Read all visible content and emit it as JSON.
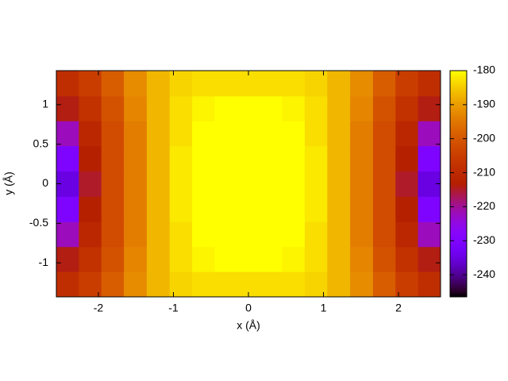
{
  "chart_data": {
    "type": "heatmap",
    "x_label": "x (Å)",
    "y_label": "y (Å)",
    "xlim": [
      -2.56,
      2.56
    ],
    "ylim": [
      -1.43,
      1.43
    ],
    "xticks": [
      -2,
      -1,
      0,
      1,
      2
    ],
    "yticks": [
      -1,
      -0.5,
      0,
      0.5,
      1
    ],
    "x": [
      -2.41,
      -2.11,
      -1.81,
      -1.51,
      -1.2,
      -0.9,
      -0.6,
      -0.3,
      0,
      0.3,
      0.6,
      0.9,
      1.2,
      1.51,
      1.81,
      2.11,
      2.41
    ],
    "y": [
      -1.27,
      -0.95,
      -0.64,
      -0.32,
      0,
      0.32,
      0.64,
      0.95,
      1.27
    ],
    "values": [
      [
        -209,
        -205,
        -199,
        -192,
        -187,
        -184,
        -183,
        -183,
        -183,
        -183,
        -183,
        -184,
        -187,
        -192,
        -199,
        -205,
        -209
      ],
      [
        -214,
        -208,
        -201,
        -193,
        -187,
        -183,
        -181,
        -180,
        -180,
        -180,
        -181,
        -183,
        -187,
        -193,
        -201,
        -208,
        -214
      ],
      [
        -222,
        -211,
        -202,
        -194,
        -187,
        -183,
        -180,
        -178,
        -178,
        -178,
        -180,
        -183,
        -187,
        -194,
        -202,
        -211,
        -222
      ],
      [
        -230,
        -213,
        -202,
        -194,
        -187,
        -182,
        -179,
        -177,
        -177,
        -177,
        -179,
        -182,
        -187,
        -194,
        -202,
        -213,
        -230
      ],
      [
        -235,
        -215,
        -202,
        -194,
        -187,
        -182,
        -179,
        -177,
        -176,
        -177,
        -179,
        -182,
        -187,
        -194,
        -202,
        -215,
        -235
      ],
      [
        -230,
        -213,
        -202,
        -194,
        -187,
        -182,
        -179,
        -177,
        -177,
        -177,
        -179,
        -182,
        -187,
        -194,
        -202,
        -213,
        -230
      ],
      [
        -222,
        -211,
        -202,
        -194,
        -187,
        -183,
        -180,
        -178,
        -178,
        -178,
        -180,
        -183,
        -187,
        -194,
        -202,
        -211,
        -222
      ],
      [
        -214,
        -208,
        -201,
        -193,
        -187,
        -183,
        -181,
        -180,
        -180,
        -180,
        -181,
        -183,
        -187,
        -193,
        -201,
        -208,
        -214
      ],
      [
        -209,
        -205,
        -199,
        -192,
        -187,
        -184,
        -183,
        -183,
        -183,
        -183,
        -183,
        -184,
        -187,
        -192,
        -199,
        -205,
        -209
      ]
    ],
    "zlim": [
      -246.5,
      -180
    ],
    "zticks": [
      -240,
      -230,
      -220,
      -210,
      -200,
      -190,
      -180
    ]
  }
}
